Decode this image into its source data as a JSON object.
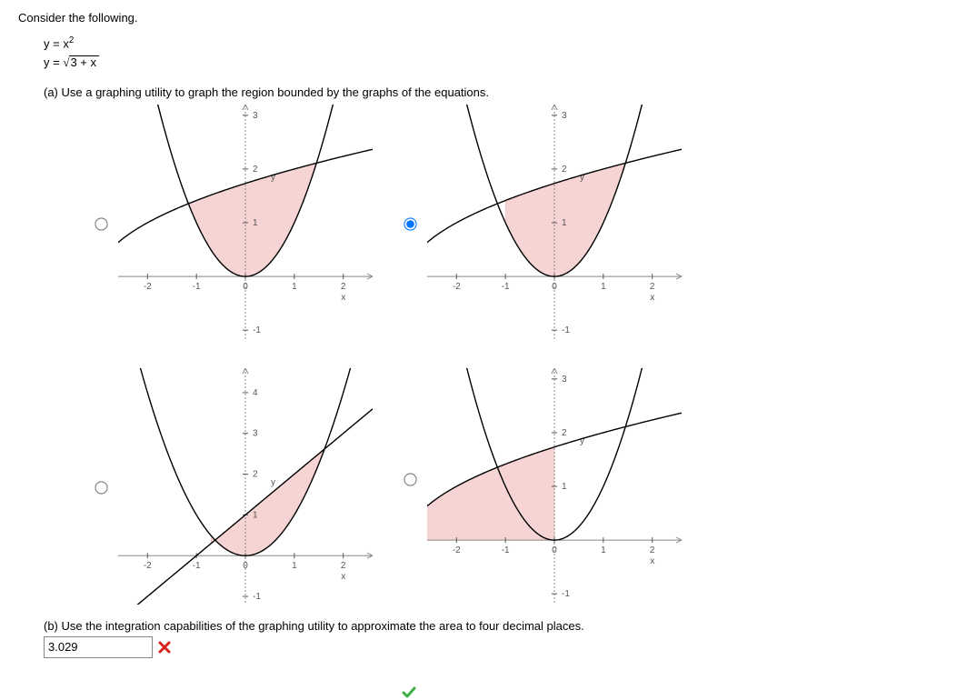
{
  "prompt": "Consider the following.",
  "equation1_lhs": "y = x",
  "equation1_sup": "2",
  "equation2_prefix": "y = ",
  "equation2_inside": "3 + x",
  "part_a": "(a) Use a graphing utility to graph the region bounded by the graphs of the equations.",
  "part_b": "(b) Use the integration capabilities of the graphing utility to approximate the area to four decimal places.",
  "answer_b_value": "3.029",
  "selected_option": 1,
  "correct_option": 2,
  "charts": {
    "common": {
      "axis_color": "#888888",
      "tick_color": "#555555",
      "curve_color": "#000000",
      "shade_fill": "#f6d4d4",
      "shade_stroke": "#e8b8b8",
      "label_x": "x",
      "label_y": "y",
      "font_size": 10
    },
    "options": [
      {
        "type": "bounded-region",
        "xlim": [
          -2.6,
          2.6
        ],
        "ylim": [
          -1.2,
          3.2
        ],
        "xticks": [
          -2,
          -1,
          0,
          1,
          2
        ],
        "yticks": [
          -1,
          1,
          2,
          3
        ],
        "curves": [
          {
            "kind": "parabola",
            "a": 1
          },
          {
            "kind": "sqrt",
            "shift": 3.2,
            "hshift": 0.2
          }
        ],
        "shade": {
          "between": [
            0,
            1
          ],
          "from": -1.2,
          "to": 1.45
        }
      },
      {
        "type": "bounded-region",
        "xlim": [
          -2.6,
          2.6
        ],
        "ylim": [
          -1.2,
          3.2
        ],
        "xticks": [
          -2,
          -1,
          0,
          1,
          2
        ],
        "yticks": [
          -1,
          1,
          2,
          3
        ],
        "curves": [
          {
            "kind": "parabola",
            "a": 1
          },
          {
            "kind": "sqrt",
            "shift": 3,
            "hshift": 0
          }
        ],
        "shade": {
          "between": [
            0,
            1
          ],
          "from": -1.0,
          "to": 1.45
        }
      },
      {
        "type": "bounded-region",
        "xlim": [
          -2.6,
          2.6
        ],
        "ylim": [
          -1.2,
          4.6
        ],
        "xticks": [
          -2,
          -1,
          0,
          1,
          2
        ],
        "yticks": [
          -1,
          1,
          2,
          3,
          4
        ],
        "curves": [
          {
            "kind": "parabola",
            "a": 1
          },
          {
            "kind": "line",
            "m": 1,
            "b": 1
          }
        ],
        "shade": {
          "between": [
            0,
            1
          ],
          "from": -0.7,
          "to": 1.62
        }
      },
      {
        "type": "bounded-region",
        "xlim": [
          -2.6,
          2.6
        ],
        "ylim": [
          -1.2,
          3.2
        ],
        "xticks": [
          -2,
          -1,
          0,
          1,
          2
        ],
        "yticks": [
          -1,
          1,
          2,
          3
        ],
        "curves": [
          {
            "kind": "parabola",
            "a": 1
          },
          {
            "kind": "sqrt",
            "shift": 3,
            "hshift": 0
          }
        ],
        "shade": {
          "below_curve": 1,
          "above": 0,
          "from": -3,
          "to": 0
        }
      }
    ]
  }
}
